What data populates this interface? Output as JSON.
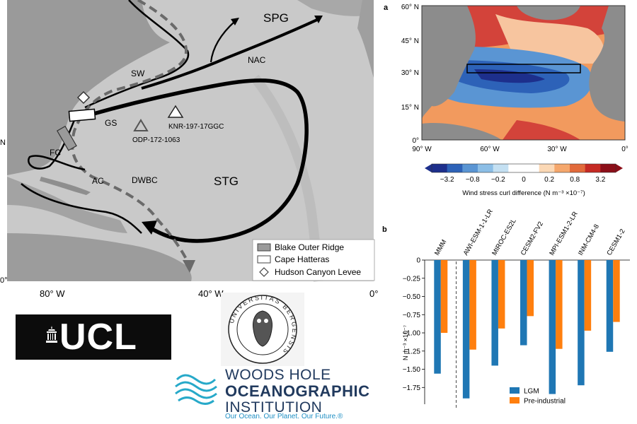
{
  "map_figure": {
    "regions": {
      "spg": "SPG",
      "stg": "STG"
    },
    "currents": {
      "nac": "NAC",
      "sw": "SW",
      "gs": "GS",
      "fc": "FC",
      "ac": "AC",
      "dwbc": "DWBC"
    },
    "sites": {
      "knr": "KNR-197-17GGC",
      "odp": "ODP-172-1063"
    },
    "x_ticks": [
      "80° W",
      "40° W",
      "0°"
    ],
    "left_edge_labels": [
      "N",
      "0°"
    ],
    "legend": [
      "Blake Outer Ridge",
      "Cape Hatteras",
      "Hudson Canyon Levee"
    ]
  },
  "panel_a": {
    "panel_label": "a",
    "y_ticks": [
      "60° N",
      "45° N",
      "30° N",
      "15° N",
      "0°"
    ],
    "x_ticks": [
      "90° W",
      "60° W",
      "30° W",
      "0°"
    ],
    "colorbar_ticks": [
      "−3.2",
      "−0.8",
      "−0.2",
      "0",
      "0.2",
      "0.8",
      "3.2"
    ],
    "colorbar_label": "Wind stress curl difference (N m⁻³ ×10⁻⁷)",
    "colorbar_colors": [
      "#1d2f8c",
      "#2d62b8",
      "#5a95d3",
      "#8cbee6",
      "#c4e0f2",
      "#ffffff",
      "#ffffff",
      "#fbd8b5",
      "#f5a76c",
      "#e26a3b",
      "#c52a24",
      "#8c0e18"
    ]
  },
  "panel_b": {
    "panel_label": "b",
    "ylabel": "N m⁻³ ×10⁻⁷",
    "y_ticks": [
      "0",
      "−0.25",
      "−0.50",
      "−0.75",
      "−1.00",
      "−1.25",
      "−1.50",
      "−1.75"
    ],
    "colors": {
      "lgm": "#1f77b4",
      "pi": "#ff7f0e"
    }
  },
  "chart_data": {
    "type": "bar",
    "categories": [
      "MMM",
      "AWI-ESM-1-1-LR",
      "MIROC-ES2L",
      "CESM2-FV2",
      "MPI-ESM1-2-LR",
      "INM-CM4-8",
      "CESM1-2"
    ],
    "series": [
      {
        "name": "LGM",
        "values": [
          -1.56,
          -1.9,
          -1.45,
          -1.17,
          -1.84,
          -1.72,
          -1.26
        ]
      },
      {
        "name": "Pre-industrial",
        "values": [
          -1.0,
          -1.23,
          -0.94,
          -0.77,
          -1.22,
          -0.97,
          -0.85
        ]
      }
    ],
    "ylabel": "N m⁻³ ×10⁻⁷",
    "ylim": [
      -1.98,
      0
    ],
    "legend": "bottom-right"
  },
  "logos": {
    "ucl": "UCL",
    "bergen_ring": "UNIVERSITAS BERGENSIS",
    "whoi_line1": "WOODS HOLE",
    "whoi_line2": "OCEANOGRAPHIC",
    "whoi_line3": "INSTITUTION",
    "whoi_tagline": "Our Ocean. Our Planet. Our Future.®"
  }
}
